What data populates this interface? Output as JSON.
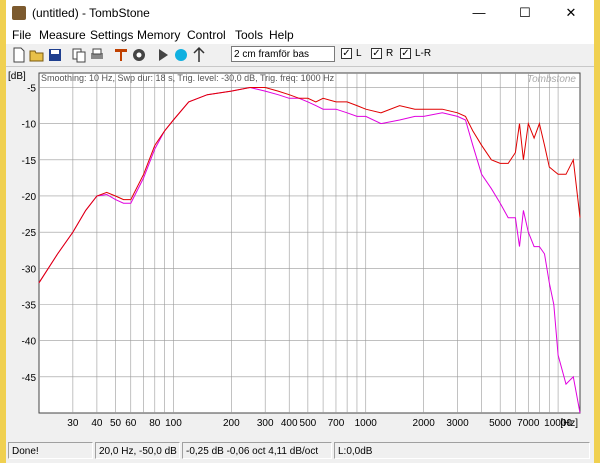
{
  "window": {
    "title": "(untitled) - TombStone",
    "minimize": "—",
    "maximize": "☐",
    "close": "✕"
  },
  "menu": [
    "File",
    "Measure",
    "Settings",
    "Memory",
    "Control",
    "Tools",
    "Help"
  ],
  "toolbar": {
    "icons": [
      "new-icon",
      "open-icon",
      "save-icon",
      "copy-icon",
      "print-icon",
      "probe-icon",
      "settings-gear-icon",
      "play-icon",
      "record-icon",
      "marker-icon"
    ],
    "measurement_name": "2 cm framför bas",
    "checks": [
      {
        "label": "L",
        "checked": true
      },
      {
        "label": "R",
        "checked": true
      },
      {
        "label": "L-R",
        "checked": true
      }
    ],
    "check_mark": "✓"
  },
  "chart_data": {
    "type": "line",
    "info_text": "Smoothing: 10 Hz, Swp dur: 18 s, Trig. level: -30,0 dB, Trig. freq: 1000 Hz",
    "watermark": "Tombstone",
    "ylabel": "[dB]",
    "xlabel": "[Hz]",
    "x_scale": "log",
    "xlim": [
      20,
      13000
    ],
    "ylim": [
      -50,
      -3
    ],
    "y_ticks": [
      -5,
      -10,
      -15,
      -20,
      -25,
      -30,
      -35,
      -40,
      -45
    ],
    "x_ticks": [
      {
        "v": 30,
        "label": "30"
      },
      {
        "v": 40,
        "label": "40"
      },
      {
        "v": 50,
        "label": "50"
      },
      {
        "v": 60,
        "label": "60"
      },
      {
        "v": 80,
        "label": "80"
      },
      {
        "v": 100,
        "label": "100"
      },
      {
        "v": 200,
        "label": "200"
      },
      {
        "v": 300,
        "label": "300"
      },
      {
        "v": 400,
        "label": "400"
      },
      {
        "v": 500,
        "label": "500"
      },
      {
        "v": 700,
        "label": "700"
      },
      {
        "v": 1000,
        "label": "1000"
      },
      {
        "v": 2000,
        "label": "2000"
      },
      {
        "v": 3000,
        "label": "3000"
      },
      {
        "v": 5000,
        "label": "5000"
      },
      {
        "v": 7000,
        "label": "7000"
      },
      {
        "v": 10000,
        "label": "10000"
      }
    ],
    "grid": true,
    "colors": {
      "r": "#e00000",
      "l": "#e000e0",
      "grid": "#9a9a9a",
      "plot_bg": "#ffffff"
    },
    "series": [
      {
        "color": "#e00000",
        "x": [
          20,
          25,
          30,
          35,
          40,
          45,
          50,
          55,
          60,
          70,
          80,
          90,
          100,
          120,
          150,
          200,
          250,
          300,
          350,
          400,
          450,
          500,
          550,
          600,
          700,
          800,
          900,
          1000,
          1200,
          1500,
          1800,
          2000,
          2500,
          3000,
          3300,
          3600,
          4000,
          4500,
          5000,
          5500,
          6000,
          6300,
          6600,
          7000,
          7500,
          8000,
          8500,
          9000,
          9500,
          10000,
          11000,
          12000,
          13000
        ],
        "y": [
          -32,
          -28,
          -25,
          -22,
          -20,
          -19.5,
          -20,
          -20.5,
          -20.5,
          -17,
          -13,
          -11,
          -9.5,
          -7,
          -6,
          -5.5,
          -5,
          -5,
          -5.5,
          -6,
          -6.5,
          -6.5,
          -7,
          -6.5,
          -7,
          -7,
          -7.5,
          -8,
          -8.5,
          -7.5,
          -8,
          -8,
          -8,
          -8.5,
          -9,
          -11,
          -13,
          -15,
          -15.5,
          -15.5,
          -14,
          -10,
          -15,
          -10,
          -12,
          -10,
          -13,
          -16,
          -16.5,
          -17,
          -17,
          -15,
          -23
        ]
      },
      {
        "color": "#e000e0",
        "x": [
          20,
          25,
          30,
          35,
          40,
          45,
          50,
          55,
          60,
          70,
          80,
          90,
          100,
          120,
          150,
          200,
          250,
          300,
          350,
          400,
          450,
          500,
          550,
          600,
          700,
          800,
          900,
          1000,
          1200,
          1500,
          1800,
          2000,
          2500,
          3000,
          3300,
          3600,
          4000,
          4500,
          5000,
          5500,
          6000,
          6300,
          6600,
          7000,
          7500,
          8000,
          8500,
          9000,
          9500,
          10000,
          11000,
          12000,
          13000
        ],
        "y": [
          -32,
          -28,
          -25,
          -22,
          -20,
          -19.8,
          -20.5,
          -21,
          -21,
          -17.5,
          -13.5,
          -11,
          -9.5,
          -7,
          -6,
          -5.5,
          -5,
          -5.5,
          -6,
          -6.5,
          -6.5,
          -7,
          -7.5,
          -8,
          -8,
          -8.5,
          -9,
          -9,
          -10,
          -9.5,
          -9,
          -9,
          -8.5,
          -9,
          -9.5,
          -13,
          -17,
          -19,
          -21,
          -23,
          -23,
          -27,
          -22,
          -25,
          -27,
          -27,
          -28,
          -32,
          -35,
          -42,
          -46,
          -45,
          -50
        ]
      }
    ]
  },
  "status": [
    {
      "text": "Done!"
    },
    {
      "text": "20,0 Hz, -50,0 dB"
    },
    {
      "text": "-0,25 dB -0,06 oct 4,11 dB/oct"
    },
    {
      "text": "L:0,0dB"
    }
  ]
}
